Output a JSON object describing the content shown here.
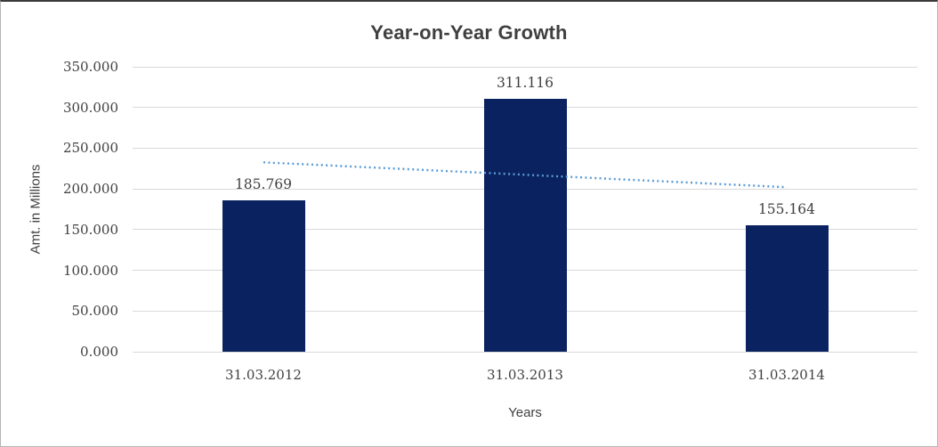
{
  "chart_data": {
    "type": "bar",
    "title": "Year-on-Year Growth",
    "xlabel": "Years",
    "ylabel": "Amt. in Millions",
    "categories": [
      "31.03.2012",
      "31.03.2013",
      "31.03.2014"
    ],
    "values": [
      185.769,
      311.116,
      155.164
    ],
    "value_labels": [
      "185.769",
      "311.116",
      "155.164"
    ],
    "ylim": [
      0,
      350
    ],
    "ytick_step": 50,
    "ytick_labels": [
      "0.000",
      "50.000",
      "100.000",
      "150.000",
      "200.000",
      "250.000",
      "300.000",
      "350.000"
    ],
    "grid": true,
    "legend_position": "none",
    "bar_color": "#0a2260",
    "gridline_color": "#d9d9d9",
    "text_color": "#404040",
    "trendline": {
      "type": "linear",
      "style": "dotted",
      "color": "#5b9bd5",
      "start_value": 232.65,
      "end_value": 202.05
    }
  }
}
